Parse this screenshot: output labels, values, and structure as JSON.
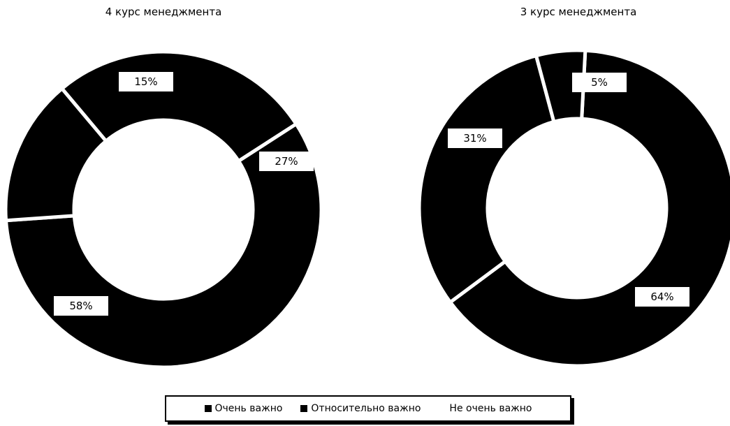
{
  "chart_data": [
    {
      "type": "pie",
      "title": "4 курс менеджмента",
      "categories": [
        "Очень важно",
        "Относительно важно",
        "Не очень важно"
      ],
      "values": [
        27,
        58,
        15
      ],
      "labels": [
        "27%",
        "58%",
        "15%"
      ],
      "donut": true
    },
    {
      "type": "pie",
      "title": "3 курс менеджмента",
      "categories": [
        "Очень важно",
        "Относительно важно",
        "Не очень важно"
      ],
      "values": [
        64,
        31,
        5
      ],
      "labels": [
        "64%",
        "31%",
        "5%"
      ],
      "donut": true
    }
  ],
  "legend": {
    "items": [
      {
        "label": "Очень важно",
        "color": "#000000"
      },
      {
        "label": "Относительно важно",
        "color": "#000000"
      },
      {
        "label": "Не очень важно",
        "color": "#ffffff"
      }
    ]
  },
  "colors": {
    "slice": "#000000",
    "separator": "#ffffff"
  }
}
